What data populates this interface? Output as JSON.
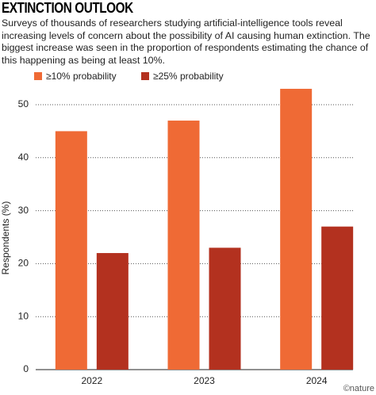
{
  "chart_data": {
    "type": "bar",
    "title": "EXTINCTION OUTLOOK",
    "subtitle": "Surveys of thousands of researchers studying artificial-intelligence tools reveal increasing levels of concern about the possibility of AI causing human extinction. The biggest increase was seen in the proportion of respondents estimating the chance of this happening as being at least 10%.",
    "y_label": "Respondents (%)",
    "source": "©nature",
    "categories": [
      "2022",
      "2023",
      "2024"
    ],
    "series": [
      {
        "name": "≥10% probability",
        "color": "#ef6a35",
        "values": [
          45,
          47,
          53
        ]
      },
      {
        "name": "≥25% probability",
        "color": "#b3311f",
        "values": [
          22,
          23,
          27
        ]
      }
    ],
    "ylim": [
      0,
      55
    ],
    "yticks": [
      0,
      10,
      20,
      30,
      40,
      50
    ],
    "grid": true
  }
}
